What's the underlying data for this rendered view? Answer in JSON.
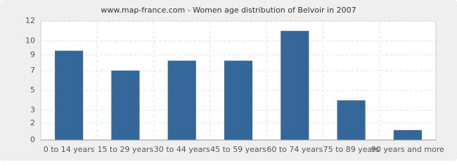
{
  "chart_data": {
    "type": "bar",
    "title": "www.map-france.com - Women age distribution of Belvoir in 2007",
    "categories": [
      "0 to 14 years",
      "15 to 29 years",
      "30 to 44 years",
      "45 to 59 years",
      "60 to 74 years",
      "75 to 89 years",
      "90 years and more"
    ],
    "values": [
      9,
      7,
      8,
      8,
      11,
      4,
      1
    ],
    "color": "#336699",
    "ylim": [
      0,
      12
    ],
    "yticks": [
      0,
      {
        "value": 1.71,
        "label": "2"
      },
      3,
      5,
      7,
      {
        "value": 8.57,
        "label": "9"
      },
      10,
      12
    ],
    "grid": true
  }
}
